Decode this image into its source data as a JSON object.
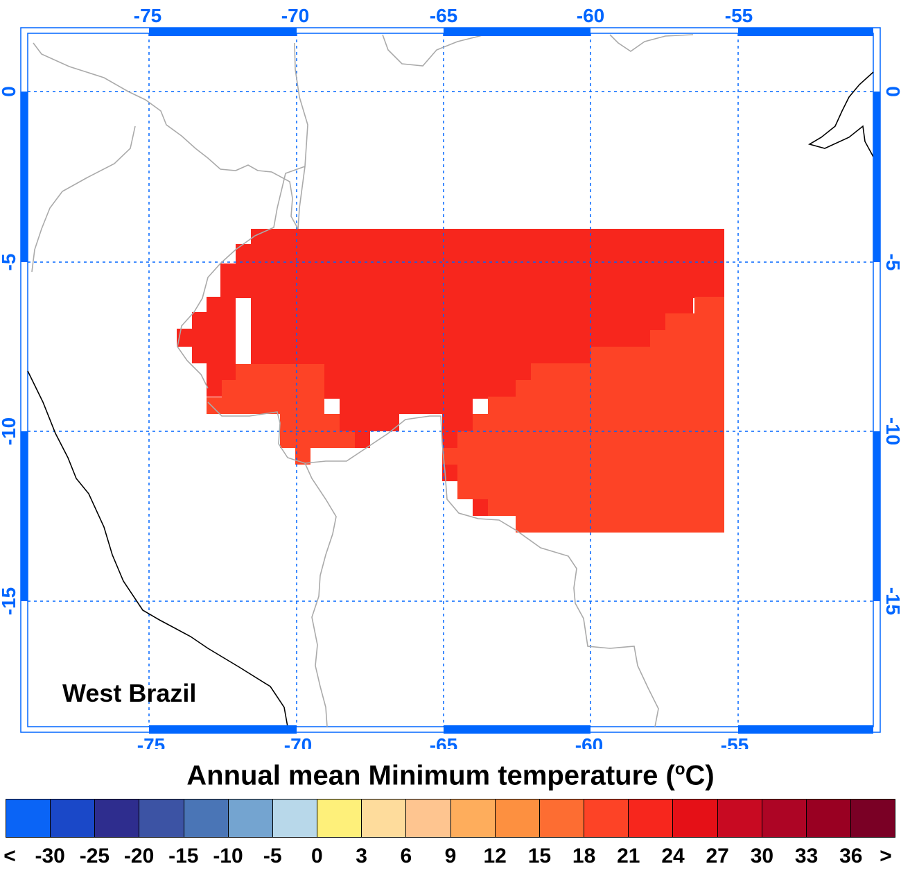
{
  "map": {
    "region_label": "West Brazil",
    "lon_ticks": [
      "-75",
      "-70",
      "-65",
      "-60",
      "-55"
    ],
    "lat_ticks": [
      "0",
      "-5",
      "-10",
      "-15"
    ],
    "axis_color": "#0066ff",
    "grid_color": "#0066ff",
    "border_color": "#aaaaaa",
    "coast_color": "#000000",
    "fill_colors": {
      "21": "#f7261d",
      "18": "#fd4326"
    }
  },
  "colorbar": {
    "title": "Annual mean Minimum temperature (",
    "title_sup": "o",
    "title_end": "C)",
    "ticks": [
      "<",
      "-30",
      "-25",
      "-20",
      "-15",
      "-10",
      "-5",
      "0",
      "3",
      "6",
      "9",
      "12",
      "15",
      "18",
      "21",
      "24",
      "27",
      "30",
      "33",
      "36",
      ">"
    ],
    "colors": [
      "#0a64f6",
      "#1a48c8",
      "#2e2d8e",
      "#3c53a4",
      "#4a75b6",
      "#74a4d0",
      "#b8d8ea",
      "#fef07a",
      "#fedc9c",
      "#fec590",
      "#fead5c",
      "#fd9040",
      "#fd6d32",
      "#fd4326",
      "#f7261d",
      "#e51017",
      "#c80a22",
      "#ad0525",
      "#990022",
      "#7a0025"
    ]
  }
}
